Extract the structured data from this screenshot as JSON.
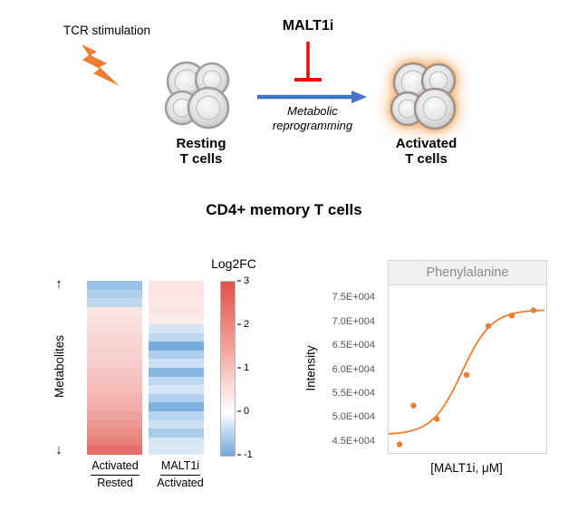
{
  "colors": {
    "accent_orange": "#ED7D31",
    "arrow_blue": "#4472C4",
    "inhibitor_red": "#FF0000",
    "heatmap_pos_max": "#E0524A",
    "heatmap_neg_max": "#6FA8DC",
    "panel_header_gray": "#F1F1F1",
    "panel_title_text": "#8A8A8A"
  },
  "diagram": {
    "tcr_label": "TCR stimulation",
    "malt1i_label": "MALT1i",
    "arrow_label_line1": "Metabolic",
    "arrow_label_line2": "reprogramming",
    "resting_label_line1": "Resting",
    "resting_label_line2": "T cells",
    "activated_label_line1": "Activated",
    "activated_label_line2": "T cells"
  },
  "section_title": "CD4+ memory T cells",
  "heatmap_panel": {
    "colorbar_title": "Log2FC",
    "y_axis_label": "Metabolites",
    "up_arrow": "↑",
    "down_arrow": "↓",
    "col1_top": "Activated",
    "col1_bottom": "Rested",
    "col2_top": "MALT1i",
    "col2_bottom": "Activated",
    "colorbar_ticks": [
      "3",
      "2",
      "1",
      "0",
      "-1"
    ]
  },
  "dose_panel": {
    "title": "Phenylalanine",
    "y_axis_label": "Intensity",
    "x_axis_label": "[MALT1i, μM]"
  },
  "chart_data": [
    {
      "type": "heatmap",
      "title": "Metabolite fold-change heatmap (CD4+ memory T cells)",
      "columns": [
        "Activated/Rested",
        "MALT1i/Activated"
      ],
      "ylabel": "Metabolites (individual metabolites, top to bottom)",
      "colorbar": {
        "label": "Log2FC",
        "min": -1,
        "max": 3,
        "ticks": [
          3,
          2,
          1,
          0,
          -1
        ]
      },
      "rows": [
        [
          -0.7,
          0.45
        ],
        [
          -0.55,
          0.5
        ],
        [
          -0.45,
          0.4
        ],
        [
          0.45,
          0.45
        ],
        [
          0.55,
          0.35
        ],
        [
          0.6,
          -0.3
        ],
        [
          0.7,
          -0.45
        ],
        [
          0.75,
          -0.95
        ],
        [
          0.8,
          -0.55
        ],
        [
          0.9,
          -0.35
        ],
        [
          1.0,
          -0.85
        ],
        [
          1.1,
          -0.45
        ],
        [
          1.2,
          -0.3
        ],
        [
          1.3,
          -0.55
        ],
        [
          1.4,
          -0.9
        ],
        [
          1.6,
          -0.5
        ],
        [
          1.8,
          -0.35
        ],
        [
          2.0,
          -0.6
        ],
        [
          2.2,
          -0.3
        ],
        [
          2.5,
          -0.25
        ]
      ]
    },
    {
      "type": "scatter",
      "title": "Phenylalanine",
      "xlabel": "[MALT1i, μM]",
      "ylabel": "Intensity",
      "x_scale": "unlabeled dose axis (x given as fraction of axis width)",
      "ylim": [
        42500,
        77500
      ],
      "yticks": [
        {
          "label": "7.5E+004",
          "value": 75000
        },
        {
          "label": "7.0E+004",
          "value": 70000
        },
        {
          "label": "6.5E+004",
          "value": 65000
        },
        {
          "label": "6.0E+004",
          "value": 60000
        },
        {
          "label": "5.5E+004",
          "value": 55000
        },
        {
          "label": "5.0E+004",
          "value": 50000
        },
        {
          "label": "4.5E+004",
          "value": 45000
        }
      ],
      "points": [
        {
          "x": 0.07,
          "y": 44300
        },
        {
          "x": 0.16,
          "y": 52400
        },
        {
          "x": 0.31,
          "y": 49600
        },
        {
          "x": 0.5,
          "y": 58800
        },
        {
          "x": 0.64,
          "y": 69000
        },
        {
          "x": 0.79,
          "y": 71200
        },
        {
          "x": 0.93,
          "y": 72300
        }
      ],
      "fit": {
        "type": "sigmoid",
        "bottom": 46300,
        "top": 72400,
        "mid": 0.47,
        "slope": 0.095
      }
    }
  ]
}
